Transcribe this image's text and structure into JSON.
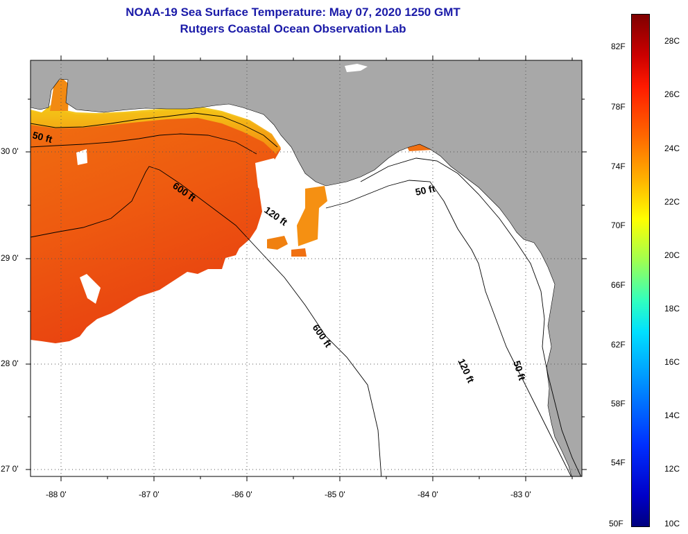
{
  "title": {
    "line1": "NOAA-19 Sea Surface Temperature:  May 07, 2020 1250 GMT",
    "line2": "Rutgers Coastal Ocean Observation Lab"
  },
  "map": {
    "lon_range": [
      -88.33,
      -82.4
    ],
    "lat_range": [
      26.97,
      30.85
    ],
    "grid": "dotted",
    "lon_ticks": [
      {
        "value": -88,
        "label": "-88 0'"
      },
      {
        "value": -87,
        "label": "-87 0'"
      },
      {
        "value": -86,
        "label": "-86 0'"
      },
      {
        "value": -85,
        "label": "-85 0'"
      },
      {
        "value": -84,
        "label": "-84 0'"
      },
      {
        "value": -83,
        "label": "-83 0'"
      }
    ],
    "lat_ticks": [
      {
        "value": 30,
        "label": "30 0'"
      },
      {
        "value": 29,
        "label": "29 0'"
      },
      {
        "value": 28,
        "label": "28 0'"
      },
      {
        "value": 27,
        "label": "27 0'"
      }
    ],
    "contour_labels": [
      {
        "id": "c50w",
        "text": "50 ft"
      },
      {
        "id": "c600a",
        "text": "600 ft"
      },
      {
        "id": "c120a",
        "text": "120 ft"
      },
      {
        "id": "c50e",
        "text": "50 ft"
      },
      {
        "id": "c600b",
        "text": "600 ft"
      },
      {
        "id": "c120b",
        "text": "120 ft"
      },
      {
        "id": "c50s",
        "text": "50 ft"
      }
    ],
    "colors": {
      "land": "#a8a8a8",
      "no_data": "#ffffff",
      "sst_warm": "#ef4a0c",
      "sst_orange": "#f9800f",
      "sst_yellow": "#f4d018"
    }
  },
  "colorbar": {
    "f_labels": [
      "82F",
      "78F",
      "74F",
      "70F",
      "66F",
      "62F",
      "58F",
      "54F",
      "50F"
    ],
    "c_labels": [
      "28C",
      "26C",
      "24C",
      "22C",
      "20C",
      "18C",
      "16C",
      "14C",
      "12C",
      "10C"
    ],
    "range_c": [
      10,
      29
    ]
  }
}
